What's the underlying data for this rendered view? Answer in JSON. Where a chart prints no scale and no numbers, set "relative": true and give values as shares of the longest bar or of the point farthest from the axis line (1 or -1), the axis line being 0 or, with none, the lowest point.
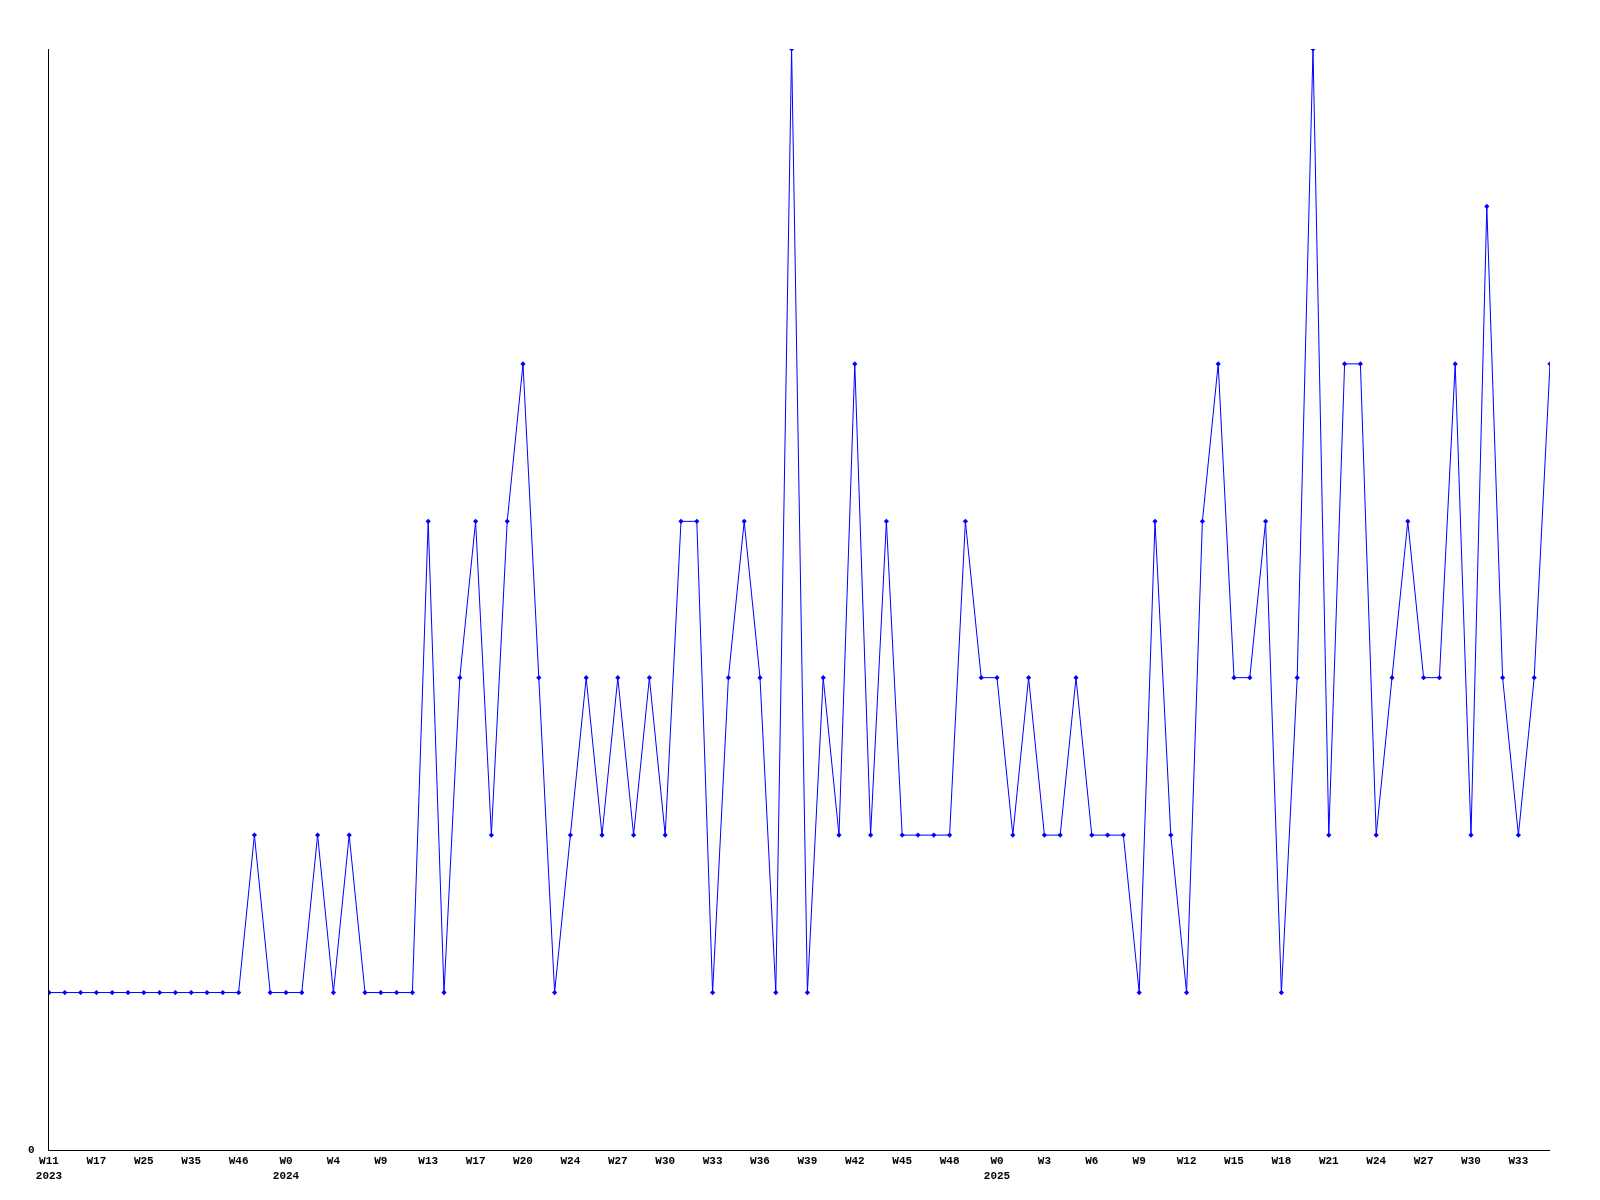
{
  "chart_data": {
    "type": "line",
    "relative": true,
    "annotations": [
      "0"
    ],
    "categories": [
      "W11\n2023",
      null,
      null,
      "W17",
      null,
      null,
      "W25",
      null,
      null,
      "W35",
      null,
      null,
      "W46",
      null,
      null,
      "W0\n2024",
      null,
      null,
      "W4",
      null,
      null,
      "W9",
      null,
      null,
      "W13",
      null,
      null,
      "W17",
      null,
      null,
      "W20",
      null,
      null,
      "W24",
      null,
      null,
      "W27",
      null,
      null,
      "W30",
      null,
      null,
      "W33",
      null,
      null,
      "W36",
      null,
      null,
      "W39",
      null,
      null,
      "W42",
      null,
      null,
      "W45",
      null,
      null,
      "W48",
      null,
      null,
      "W0\n2025",
      null,
      null,
      "W3",
      null,
      null,
      "W6",
      null,
      null,
      "W9",
      null,
      null,
      "W12",
      null,
      null,
      "W15",
      null,
      null,
      "W18",
      null,
      null,
      "W21",
      null,
      null,
      "W24",
      null,
      null,
      "W27",
      null,
      null,
      "W30",
      null,
      null,
      "W33",
      null,
      null
    ],
    "series": [
      {
        "color": "#0000ff",
        "values": [
          0.143,
          0.143,
          0.143,
          0.143,
          0.143,
          0.143,
          0.143,
          0.143,
          0.143,
          0.143,
          0.143,
          0.143,
          0.143,
          0.286,
          0.143,
          0.143,
          0.143,
          0.286,
          0.143,
          0.286,
          0.143,
          0.143,
          0.143,
          0.143,
          0.571,
          0.143,
          0.429,
          0.571,
          0.286,
          0.571,
          0.714,
          0.429,
          0.143,
          0.286,
          0.429,
          0.286,
          0.429,
          0.286,
          0.429,
          0.286,
          0.571,
          0.571,
          0.143,
          0.429,
          0.571,
          0.429,
          0.143,
          1,
          0.143,
          0.429,
          0.286,
          0.714,
          0.286,
          0.571,
          0.286,
          0.286,
          0.286,
          0.286,
          0.571,
          0.429,
          0.429,
          0.286,
          0.429,
          0.286,
          0.286,
          0.429,
          0.286,
          0.286,
          0.286,
          0.143,
          0.571,
          0.286,
          0.143,
          0.571,
          0.714,
          0.429,
          0.429,
          0.571,
          0.143,
          0.429,
          1,
          0.286,
          0.714,
          0.714,
          0.286,
          0.429,
          0.571,
          0.429,
          0.429,
          0.714,
          0.286,
          0.857,
          0.429,
          0.286,
          0.429,
          0.714
        ]
      }
    ],
    "marker": "diamond",
    "line_style": "solid",
    "grid": false
  }
}
